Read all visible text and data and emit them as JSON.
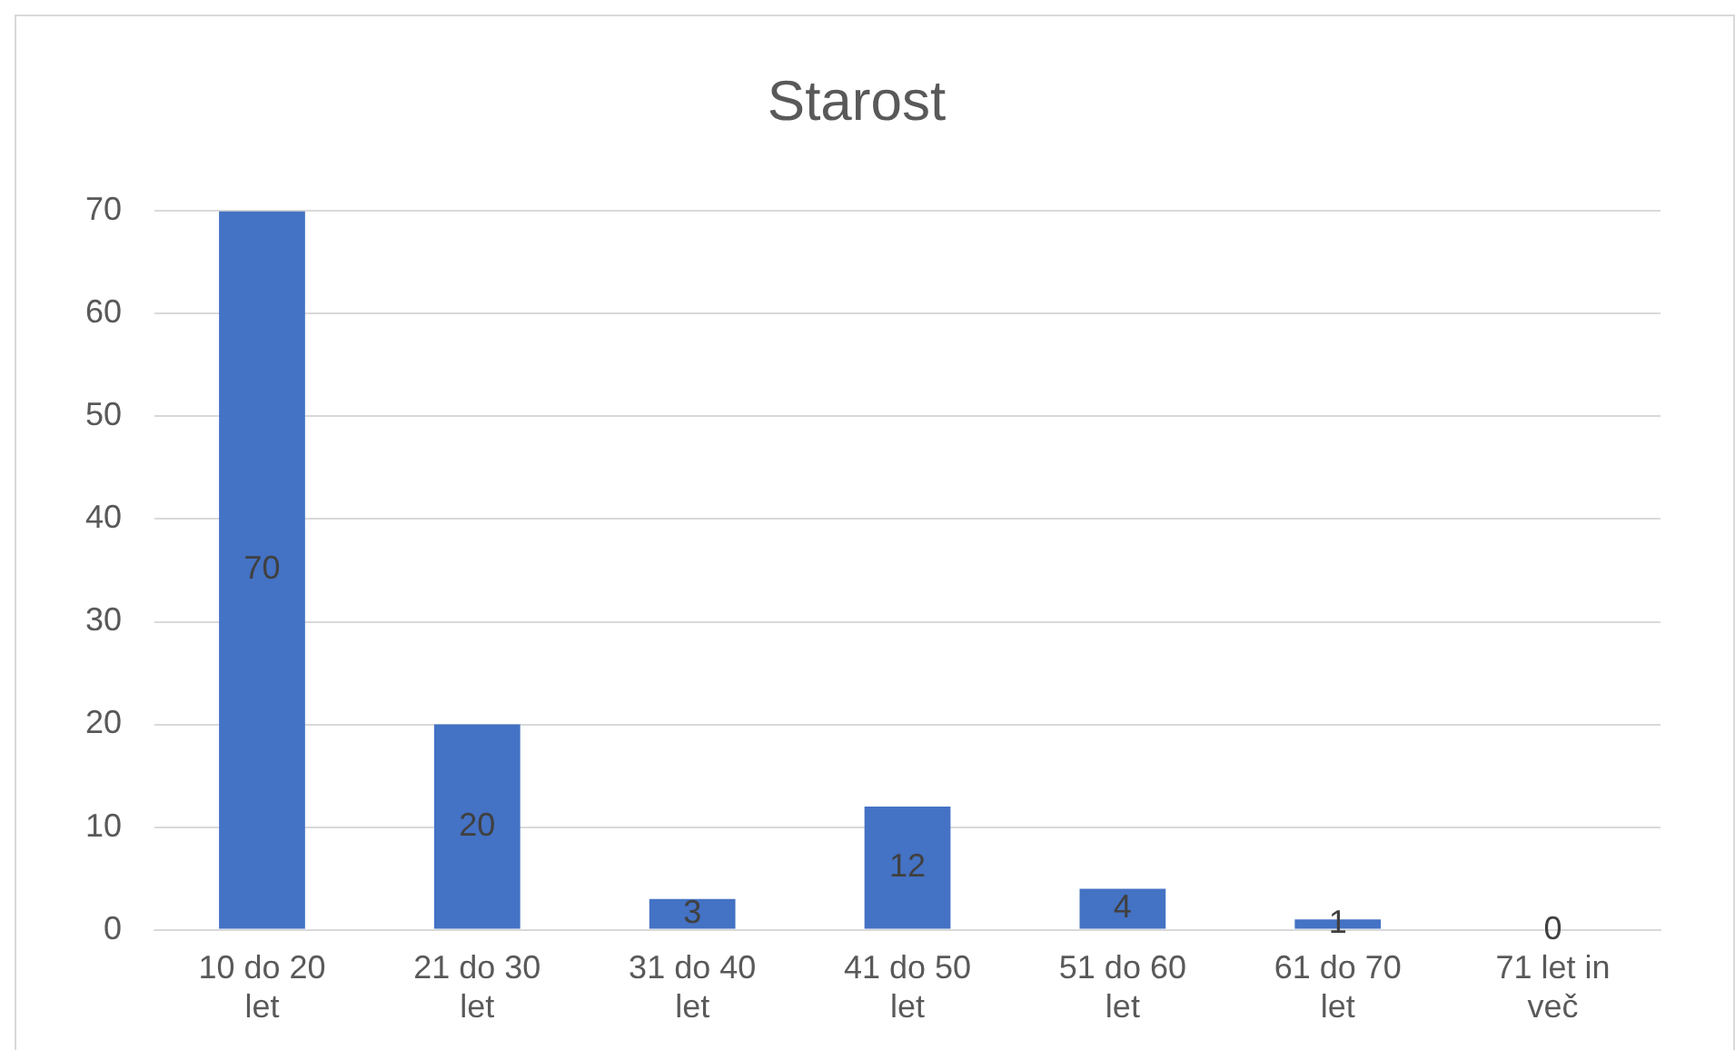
{
  "chart_data": {
    "type": "bar",
    "title": "Starost",
    "categories": [
      "10 do 20 let",
      "21 do 30 let",
      "31 do 40 let",
      "41 do 50 let",
      "51 do 60 let",
      "61 do 70 let",
      "71 let in več"
    ],
    "values": [
      70,
      20,
      3,
      12,
      4,
      1,
      0
    ],
    "color": "#4472c4",
    "ylim": [
      0,
      70
    ],
    "yticks": [
      0,
      10,
      20,
      30,
      40,
      50,
      60,
      70
    ],
    "grid": true,
    "data_labels": true
  }
}
